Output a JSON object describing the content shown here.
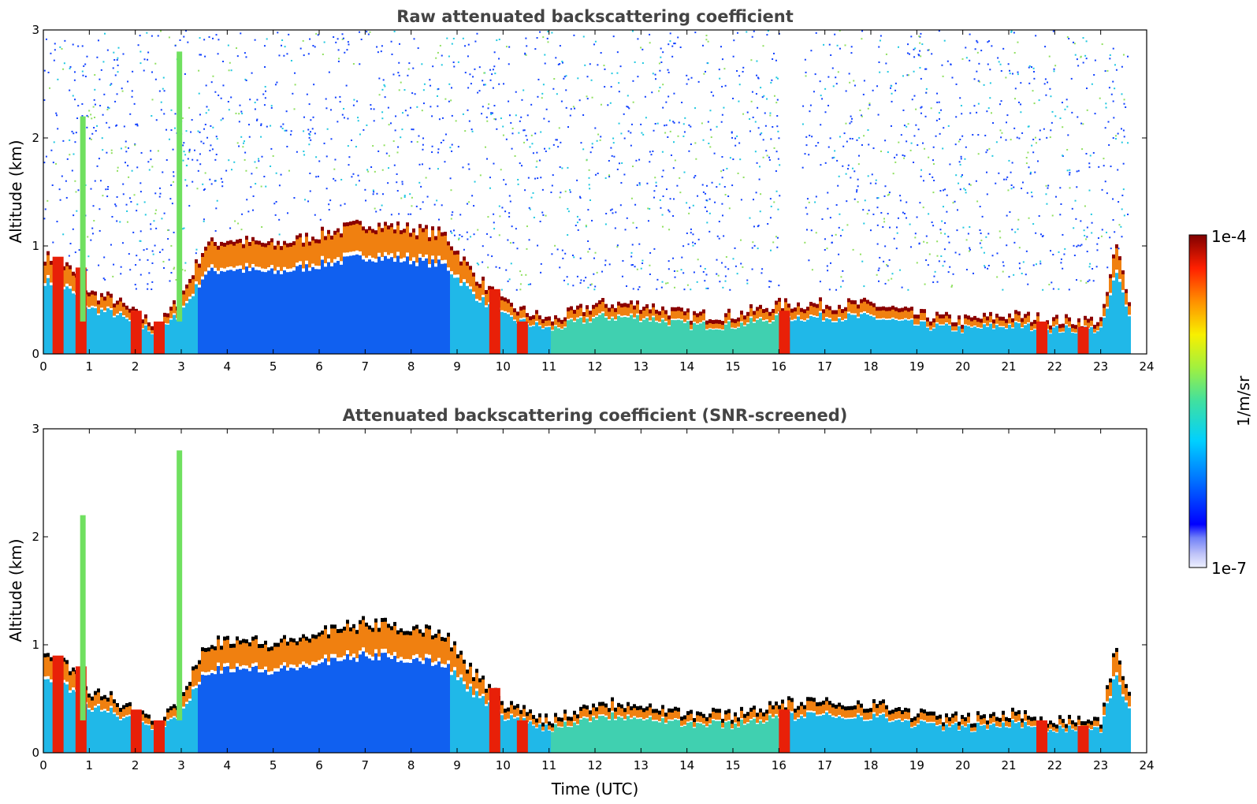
{
  "chart_data": [
    {
      "type": "heatmap",
      "title": "Raw attenuated backscattering coefficient",
      "xlabel": "",
      "ylabel": "Altitude (km)",
      "xlim": [
        0,
        24
      ],
      "ylim": [
        0,
        3
      ],
      "x_ticks": [
        "0",
        "1",
        "2",
        "3",
        "4",
        "5",
        "6",
        "7",
        "8",
        "9",
        "10",
        "11",
        "12",
        "13",
        "14",
        "15",
        "16",
        "17",
        "18",
        "19",
        "20",
        "21",
        "22",
        "23",
        "24"
      ],
      "y_ticks": [
        "0",
        "1",
        "2",
        "3"
      ],
      "screened": false,
      "layer_top_km": [
        [
          0,
          0.9
        ],
        [
          0.5,
          0.8
        ],
        [
          1,
          0.55
        ],
        [
          1.5,
          0.5
        ],
        [
          2,
          0.35
        ],
        [
          2.5,
          0.25
        ],
        [
          3,
          0.55
        ],
        [
          3.5,
          1.0
        ],
        [
          4,
          1.05
        ],
        [
          5,
          1.0
        ],
        [
          6,
          1.1
        ],
        [
          7,
          1.2
        ],
        [
          8,
          1.15
        ],
        [
          8.7,
          1.1
        ],
        [
          9.3,
          0.75
        ],
        [
          10,
          0.45
        ],
        [
          11,
          0.3
        ],
        [
          12,
          0.45
        ],
        [
          13,
          0.45
        ],
        [
          14,
          0.35
        ],
        [
          15,
          0.35
        ],
        [
          16,
          0.45
        ],
        [
          17,
          0.45
        ],
        [
          18,
          0.45
        ],
        [
          19,
          0.35
        ],
        [
          20,
          0.3
        ],
        [
          21,
          0.35
        ],
        [
          22,
          0.3
        ],
        [
          23,
          0.3
        ],
        [
          23.3,
          1.0
        ],
        [
          23.6,
          0.5
        ]
      ]
    },
    {
      "type": "heatmap",
      "title": "Attenuated backscattering coefficient (SNR-screened)",
      "xlabel": "Time (UTC)",
      "ylabel": "Altitude (km)",
      "xlim": [
        0,
        24
      ],
      "ylim": [
        0,
        3
      ],
      "x_ticks": [
        "0",
        "1",
        "2",
        "3",
        "4",
        "5",
        "6",
        "7",
        "8",
        "9",
        "10",
        "11",
        "12",
        "13",
        "14",
        "15",
        "16",
        "17",
        "18",
        "19",
        "20",
        "21",
        "22",
        "23",
        "24"
      ],
      "y_ticks": [
        "0",
        "1",
        "2",
        "3"
      ],
      "screened": true
    }
  ],
  "colorbar": {
    "max_label": "1e-4",
    "min_label": "1e-7",
    "unit": "1/m/sr"
  },
  "colors": {
    "dark_red": "#8b0000",
    "red": "#e8200a",
    "yellow": "#f4e01c",
    "cyan": "#22c8e0",
    "blue": "#1050f0"
  }
}
